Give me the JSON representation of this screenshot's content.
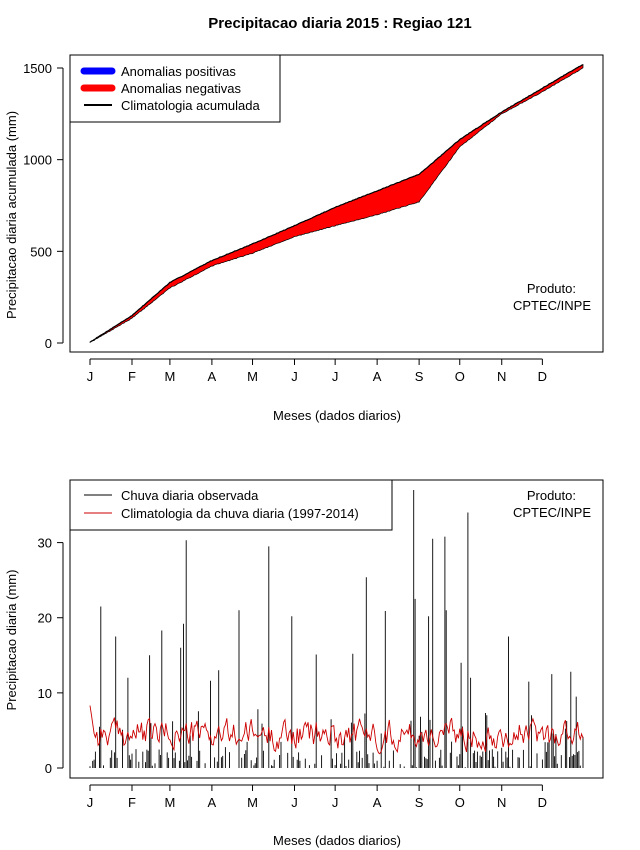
{
  "title": "Precipitacao diaria 2015 : Regiao 121",
  "producer": {
    "line1": "Produto:",
    "line2": "CPTEC/INPE"
  },
  "chart_data": [
    {
      "type": "area",
      "name": "accumulated",
      "ylabel": "Precipitacao diaria acumulada (mm)",
      "xlabel": "Meses (dados diarios)",
      "xlim": [
        1,
        365
      ],
      "ylim": [
        0,
        1500
      ],
      "yticks": [
        0,
        500,
        1000,
        1500
      ],
      "month_labels": [
        "J",
        "F",
        "M",
        "A",
        "M",
        "J",
        "J",
        "A",
        "S",
        "O",
        "N",
        "D"
      ],
      "month_starts": [
        1,
        32,
        60,
        91,
        121,
        152,
        182,
        213,
        244,
        274,
        305,
        335
      ],
      "legend": [
        "Anomalias positivas",
        "Anomalias negativas",
        "Climatologia acumulada"
      ],
      "legend_colors": [
        "#0000ff",
        "#ff0000",
        "#000000"
      ],
      "climatology_knots": [
        [
          1,
          5
        ],
        [
          32,
          150
        ],
        [
          60,
          330
        ],
        [
          91,
          450
        ],
        [
          121,
          540
        ],
        [
          152,
          640
        ],
        [
          182,
          740
        ],
        [
          213,
          830
        ],
        [
          244,
          920
        ],
        [
          274,
          1110
        ],
        [
          305,
          1260
        ],
        [
          335,
          1390
        ],
        [
          365,
          1520
        ]
      ],
      "observed_knots": [
        [
          1,
          2
        ],
        [
          32,
          135
        ],
        [
          60,
          300
        ],
        [
          91,
          420
        ],
        [
          121,
          490
        ],
        [
          152,
          580
        ],
        [
          182,
          640
        ],
        [
          213,
          700
        ],
        [
          244,
          770
        ],
        [
          274,
          1070
        ],
        [
          305,
          1250
        ],
        [
          335,
          1370
        ],
        [
          365,
          1500
        ]
      ]
    },
    {
      "type": "line",
      "name": "daily",
      "ylabel": "Precipitacao diaria (mm)",
      "xlabel": "Meses (dados diarios)",
      "xlim": [
        1,
        365
      ],
      "ylim": [
        0,
        37
      ],
      "yticks": [
        0,
        10,
        20,
        30
      ],
      "legend": [
        "Chuva diaria observada",
        "Climatologia da chuva diaria (1997-2014)"
      ],
      "legend_colors": [
        "#000000",
        "#cc0000"
      ],
      "observed_peaks": [
        [
          9,
          21.5
        ],
        [
          20,
          17.5
        ],
        [
          29,
          12
        ],
        [
          45,
          15
        ],
        [
          54,
          18.3
        ],
        [
          68,
          16
        ],
        [
          70,
          19.2
        ],
        [
          72,
          30.3
        ],
        [
          90,
          11.6
        ],
        [
          96,
          13
        ],
        [
          111,
          21
        ],
        [
          133,
          29.5
        ],
        [
          150,
          20.2
        ],
        [
          168,
          15.1
        ],
        [
          195,
          15.2
        ],
        [
          205,
          25.4
        ],
        [
          219,
          20.9
        ],
        [
          240,
          37
        ],
        [
          241,
          22.5
        ],
        [
          251,
          20.2
        ],
        [
          254,
          30.5
        ],
        [
          263,
          30.8
        ],
        [
          264,
          21
        ],
        [
          275,
          14
        ],
        [
          280,
          34
        ],
        [
          282,
          12
        ],
        [
          310,
          17.5
        ],
        [
          325,
          11.5
        ],
        [
          342,
          12.5
        ],
        [
          356,
          12.8
        ],
        [
          360,
          9.5
        ]
      ],
      "climatology_mean_mm": 4.5
    }
  ]
}
